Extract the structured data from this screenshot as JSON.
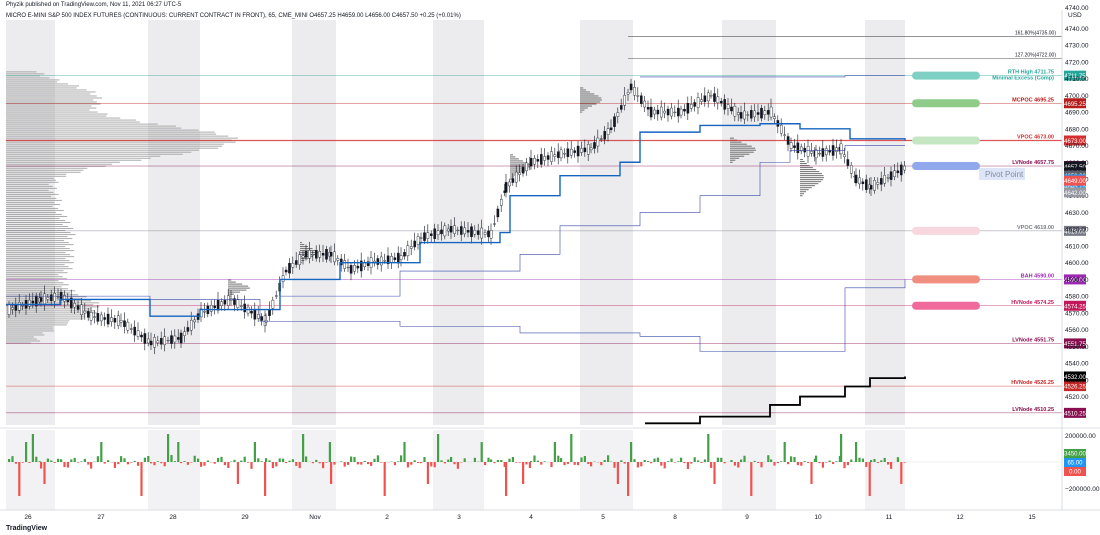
{
  "header": {
    "published": "Phyzik published on TradingView.com, Nov 11, 2021 06:27 UTC-5",
    "symbol_line": "MICRO E-MINI S&P 500 INDEX FUTURES (CONTINUOUS: CURRENT CONTRACT IN FRONT), 65, CME_MINI  O4657.25  H4659.00  L4656.00  C4657.50  +0.25 (+0.01%)"
  },
  "footer": {
    "brand": "TradingView"
  },
  "chart_data": {
    "type": "candlestick",
    "currency": "USD",
    "price_axis": {
      "range": [
        4503,
        4745
      ],
      "ticks": [
        4520,
        4530,
        4540,
        4550,
        4560,
        4570,
        4580,
        4590,
        4600,
        4610,
        4620,
        4630,
        4640,
        4650,
        4660,
        4670,
        4680,
        4690,
        4700,
        4710,
        4720,
        4730,
        4740
      ],
      "top_label": "4740.00"
    },
    "x_axis": {
      "labels": [
        "26",
        "27",
        "28",
        "29",
        "Nov",
        "2",
        "3",
        "4",
        "5",
        "8",
        "9",
        "10",
        "11",
        "12",
        "15"
      ]
    },
    "fib_levels": [
      {
        "label": "161.80%(4735.00)",
        "price": 4735.0
      },
      {
        "label": "127.20%(4722.00)",
        "price": 4722.0
      }
    ],
    "levels": [
      {
        "label": "RTH High 4711.75",
        "label2": "Minimal Excess (Comp)",
        "price": 4711.75,
        "tag": "4711.75",
        "color": "#26a69a",
        "pill": "#7fd0c4"
      },
      {
        "label": "MCPOC 4695.25",
        "price": 4695.25,
        "tag": "4695.25",
        "color": "#b71c1c",
        "pill": "#8fcc8a"
      },
      {
        "label": "VPOC 4673.00",
        "price": 4673.0,
        "tag": "4673.00",
        "color": "#d32f2f",
        "pill": "#c5e6c3"
      },
      {
        "label": "LVNode 4657.75",
        "price": 4657.75,
        "tag": "4657.75",
        "color": "#880e4f",
        "pill": "#90a8ec"
      },
      {
        "label": "VPOC 4619.00",
        "price": 4619.0,
        "tag": "4619.00",
        "color": "#787b86",
        "pill": "#f8d7de"
      },
      {
        "label": "BAH 4590.00",
        "price": 4590.0,
        "tag": "4590.00",
        "color": "#9c27b0",
        "pill": "#f08f80"
      },
      {
        "label": "HVNode 4574.25",
        "price": 4574.25,
        "tag": "4574.25",
        "color": "#c2185b",
        "pill": "#f06b9c"
      },
      {
        "label": "LVNode 4551.75",
        "price": 4551.75,
        "tag": "4551.75",
        "color": "#880e4f"
      },
      {
        "label": "HVNode 4526.25",
        "price": 4526.25,
        "tag": "4526.25",
        "color": "#c62828"
      },
      {
        "label": "LVNode 4510.25",
        "price": 4510.25,
        "tag": "4510.25",
        "color": "#880e4f"
      }
    ],
    "current_tags": [
      {
        "text": "4657.50",
        "price": 4657.5,
        "color": "#131722"
      },
      {
        "text": "32:20",
        "price": 4653.9,
        "color": "#131722"
      },
      {
        "text": "4652.00",
        "price": 4652.0,
        "color": "#5d606b"
      },
      {
        "text": "4649.75",
        "price": 4649.75,
        "color": "#2196f3"
      },
      {
        "text": "4645.75",
        "price": 4645.75,
        "color": "#2196f3"
      },
      {
        "text": "4649.00",
        "price": 4649.0,
        "color": "#ef5350"
      },
      {
        "text": "4642.00",
        "price": 4642.0,
        "color": "#9598a1"
      },
      {
        "text": "4532.00",
        "price": 4532.0,
        "color": "#000000"
      }
    ],
    "annotation": {
      "text": "Pivot Point",
      "price": 4653
    },
    "volume_delta": {
      "axis_labels": [
        "200000.00",
        "−200000.00"
      ],
      "tags": [
        {
          "text": "3450.00",
          "color": "#43a047"
        },
        {
          "text": "65.00",
          "color": "#2196f3"
        },
        {
          "text": "0.00",
          "color": "#ef5350"
        }
      ]
    },
    "colors": {
      "up": "#26a69a",
      "down": "#ef5350",
      "candle": "#131722",
      "vwap": "#1565c0",
      "session_shade": "#ececee"
    }
  }
}
